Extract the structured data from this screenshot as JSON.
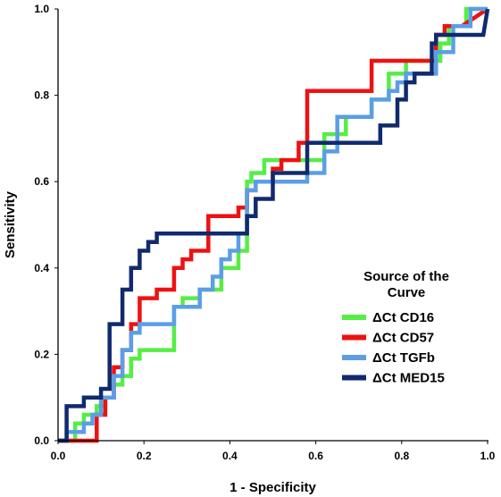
{
  "chart_data": {
    "type": "line",
    "title": "",
    "xlabel": "1 - Specificity",
    "ylabel": "Sensitivity",
    "xlim": [
      0,
      1
    ],
    "ylim": [
      0,
      1
    ],
    "x_ticks": [
      "0.0",
      "0.2",
      "0.4",
      "0.6",
      "0.8",
      "1.0"
    ],
    "y_ticks": [
      "0.0",
      "0.2",
      "0.4",
      "0.6",
      "0.8",
      "1.0"
    ],
    "grid": false,
    "legend": {
      "title_lines": [
        "Source of the",
        "Curve"
      ],
      "placement": "lower-right"
    },
    "series": [
      {
        "name": "ΔCt CD16",
        "color": "#55ee44",
        "x": [
          0,
          0.04,
          0.04,
          0.06,
          0.06,
          0.09,
          0.09,
          0.11,
          0.11,
          0.13,
          0.13,
          0.15,
          0.15,
          0.17,
          0.17,
          0.19,
          0.19,
          0.23,
          0.23,
          0.27,
          0.27,
          0.29,
          0.29,
          0.33,
          0.33,
          0.38,
          0.38,
          0.42,
          0.42,
          0.44,
          0.44,
          0.45,
          0.45,
          0.48,
          0.48,
          0.5,
          0.5,
          0.54,
          0.54,
          0.6,
          0.6,
          0.62,
          0.62,
          0.67,
          0.67,
          0.73,
          0.73,
          0.77,
          0.77,
          0.81,
          0.81,
          0.83,
          0.83,
          0.89,
          0.89,
          0.91,
          0.91,
          0.95,
          0.95,
          1.0
        ],
        "y": [
          0,
          0,
          0.04,
          0.04,
          0.06,
          0.06,
          0.08,
          0.08,
          0.1,
          0.1,
          0.13,
          0.13,
          0.15,
          0.15,
          0.19,
          0.19,
          0.21,
          0.21,
          0.21,
          0.21,
          0.31,
          0.31,
          0.33,
          0.33,
          0.35,
          0.35,
          0.4,
          0.4,
          0.44,
          0.44,
          0.6,
          0.6,
          0.62,
          0.62,
          0.65,
          0.65,
          0.65,
          0.65,
          0.65,
          0.65,
          0.65,
          0.65,
          0.71,
          0.71,
          0.75,
          0.75,
          0.79,
          0.79,
          0.85,
          0.85,
          0.88,
          0.88,
          0.88,
          0.88,
          0.92,
          0.92,
          0.96,
          0.96,
          1.0,
          1.0
        ]
      },
      {
        "name": "ΔCt CD57",
        "color": "#ee1111",
        "x": [
          0,
          0.09,
          0.09,
          0.11,
          0.11,
          0.13,
          0.13,
          0.15,
          0.15,
          0.17,
          0.17,
          0.19,
          0.19,
          0.23,
          0.23,
          0.27,
          0.27,
          0.29,
          0.29,
          0.31,
          0.31,
          0.35,
          0.35,
          0.42,
          0.42,
          0.44,
          0.44,
          0.46,
          0.46,
          0.5,
          0.5,
          0.52,
          0.52,
          0.56,
          0.56,
          0.58,
          0.58,
          0.73,
          0.73,
          0.81,
          0.81,
          0.88,
          0.88,
          0.9,
          0.9,
          0.94,
          0.94,
          1.0
        ],
        "y": [
          0,
          0,
          0.06,
          0.06,
          0.1,
          0.1,
          0.17,
          0.17,
          0.21,
          0.21,
          0.27,
          0.27,
          0.33,
          0.33,
          0.35,
          0.35,
          0.4,
          0.4,
          0.42,
          0.42,
          0.44,
          0.44,
          0.52,
          0.52,
          0.54,
          0.54,
          0.58,
          0.58,
          0.6,
          0.6,
          0.63,
          0.63,
          0.65,
          0.65,
          0.69,
          0.69,
          0.81,
          0.81,
          0.88,
          0.88,
          0.88,
          0.88,
          0.94,
          0.94,
          0.96,
          0.96,
          0.96,
          1.0
        ]
      },
      {
        "name": "ΔCt TGFb",
        "color": "#5b9ee6",
        "x": [
          0,
          0.02,
          0.02,
          0.06,
          0.06,
          0.08,
          0.08,
          0.1,
          0.1,
          0.13,
          0.13,
          0.15,
          0.15,
          0.17,
          0.17,
          0.19,
          0.19,
          0.23,
          0.23,
          0.27,
          0.27,
          0.33,
          0.33,
          0.36,
          0.36,
          0.38,
          0.38,
          0.4,
          0.4,
          0.42,
          0.42,
          0.44,
          0.44,
          0.46,
          0.46,
          0.5,
          0.5,
          0.54,
          0.54,
          0.58,
          0.58,
          0.62,
          0.62,
          0.65,
          0.65,
          0.73,
          0.73,
          0.77,
          0.77,
          0.79,
          0.79,
          0.81,
          0.81,
          0.85,
          0.85,
          0.88,
          0.88,
          0.92,
          0.92,
          0.96,
          0.96,
          1.0
        ],
        "y": [
          0,
          0,
          0.02,
          0.02,
          0.04,
          0.04,
          0.06,
          0.06,
          0.1,
          0.1,
          0.15,
          0.15,
          0.21,
          0.21,
          0.25,
          0.25,
          0.27,
          0.27,
          0.27,
          0.27,
          0.31,
          0.31,
          0.35,
          0.35,
          0.38,
          0.38,
          0.42,
          0.42,
          0.44,
          0.44,
          0.48,
          0.48,
          0.58,
          0.58,
          0.6,
          0.6,
          0.6,
          0.6,
          0.6,
          0.6,
          0.62,
          0.62,
          0.67,
          0.67,
          0.75,
          0.75,
          0.79,
          0.79,
          0.81,
          0.81,
          0.83,
          0.83,
          0.85,
          0.85,
          0.85,
          0.85,
          0.9,
          0.9,
          0.96,
          0.96,
          1.0,
          1.0
        ]
      },
      {
        "name": "ΔCt MED15",
        "color": "#102a6e",
        "x": [
          0,
          0.02,
          0.02,
          0.06,
          0.06,
          0.1,
          0.1,
          0.12,
          0.12,
          0.13,
          0.13,
          0.15,
          0.15,
          0.17,
          0.17,
          0.19,
          0.19,
          0.21,
          0.21,
          0.23,
          0.23,
          0.25,
          0.25,
          0.44,
          0.44,
          0.46,
          0.46,
          0.5,
          0.5,
          0.58,
          0.58,
          0.69,
          0.69,
          0.75,
          0.75,
          0.79,
          0.79,
          0.81,
          0.81,
          0.83,
          0.83,
          0.87,
          0.87,
          0.88,
          0.88,
          0.99,
          0.99,
          1.0
        ],
        "y": [
          0,
          0,
          0.08,
          0.08,
          0.1,
          0.1,
          0.12,
          0.12,
          0.27,
          0.27,
          0.27,
          0.27,
          0.35,
          0.35,
          0.4,
          0.4,
          0.44,
          0.44,
          0.46,
          0.46,
          0.48,
          0.48,
          0.48,
          0.48,
          0.52,
          0.52,
          0.56,
          0.56,
          0.62,
          0.62,
          0.69,
          0.69,
          0.69,
          0.69,
          0.73,
          0.73,
          0.79,
          0.79,
          0.83,
          0.83,
          0.85,
          0.85,
          0.92,
          0.92,
          0.94,
          0.94,
          0.94,
          1.0
        ]
      }
    ]
  }
}
